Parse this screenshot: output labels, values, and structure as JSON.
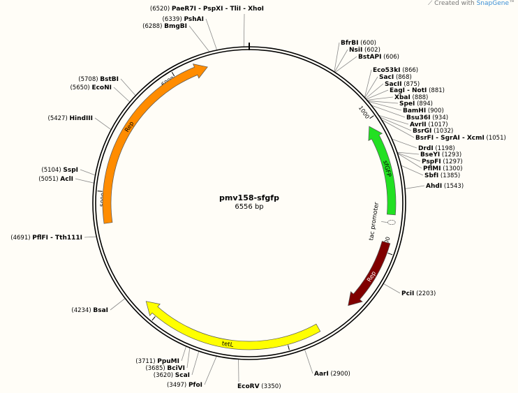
{
  "logo": {
    "prefix": "Created with ",
    "brand": "SnapGene",
    "suffix": "™"
  },
  "plasmid": {
    "name": "pmv158-sfgfp",
    "length_label": "6556 bp",
    "length": 6556
  },
  "ticks": [
    1000,
    2000,
    3000,
    4000,
    5000,
    6000
  ],
  "features": [
    {
      "name": "Rep",
      "start": 4771,
      "end": 6246,
      "direction": "cw",
      "color": "#ff8c00",
      "label_color": "#000000"
    },
    {
      "name": "sfGFP",
      "start": 1045,
      "end": 1723,
      "direction": "ccw",
      "color": "#22e022",
      "label_color": "#000000"
    },
    {
      "name": "Rep",
      "start": 1930,
      "end": 2477,
      "direction": "cw",
      "color": "#800000",
      "label_color": "#ffffff"
    },
    {
      "name": "tetL",
      "start": 2750,
      "end": 4123,
      "direction": "cw",
      "color": "#ffff00",
      "label_color": "#000000"
    }
  ],
  "promoter": {
    "name": "tac promoter",
    "position": 1790
  },
  "enzymes": [
    {
      "name": "PaeR7I - PspXI - TliI - XhoI",
      "bp": 6520
    },
    {
      "name": "PshAI",
      "bp": 6339
    },
    {
      "name": "BmgBI",
      "bp": 6288
    },
    {
      "name": "BfrBI",
      "bp": 600
    },
    {
      "name": "NsiI",
      "bp": 602
    },
    {
      "name": "BstAPI",
      "bp": 606
    },
    {
      "name": "Eco53kI",
      "bp": 866
    },
    {
      "name": "SacI",
      "bp": 868
    },
    {
      "name": "SacII",
      "bp": 875
    },
    {
      "name": "EagI - NotI",
      "bp": 881
    },
    {
      "name": "XbaI",
      "bp": 888
    },
    {
      "name": "SpeI",
      "bp": 894
    },
    {
      "name": "BamHI",
      "bp": 900
    },
    {
      "name": "Bsu36I",
      "bp": 934
    },
    {
      "name": "AvrII",
      "bp": 1017
    },
    {
      "name": "BsrGI",
      "bp": 1032
    },
    {
      "name": "BsrFI - SgrAI - XcmI",
      "bp": 1051
    },
    {
      "name": "DrdI",
      "bp": 1198
    },
    {
      "name": "BseYI",
      "bp": 1293
    },
    {
      "name": "PspFI",
      "bp": 1297
    },
    {
      "name": "PflMI",
      "bp": 1300
    },
    {
      "name": "SbfI",
      "bp": 1385
    },
    {
      "name": "AhdI",
      "bp": 1543
    },
    {
      "name": "PciI",
      "bp": 2203
    },
    {
      "name": "AarI",
      "bp": 2900
    },
    {
      "name": "EcoRV",
      "bp": 3350
    },
    {
      "name": "PfoI",
      "bp": 3497
    },
    {
      "name": "ScaI",
      "bp": 3620
    },
    {
      "name": "BciVI",
      "bp": 3685
    },
    {
      "name": "PpuMI",
      "bp": 3711
    },
    {
      "name": "BsaI",
      "bp": 4234
    },
    {
      "name": "PflFI - Tth111I",
      "bp": 4691
    },
    {
      "name": "AclI",
      "bp": 5051
    },
    {
      "name": "SspI",
      "bp": 5104
    },
    {
      "name": "HindIII",
      "bp": 5427
    },
    {
      "name": "EcoNI",
      "bp": 5650
    },
    {
      "name": "BstBI",
      "bp": 5708
    }
  ]
}
